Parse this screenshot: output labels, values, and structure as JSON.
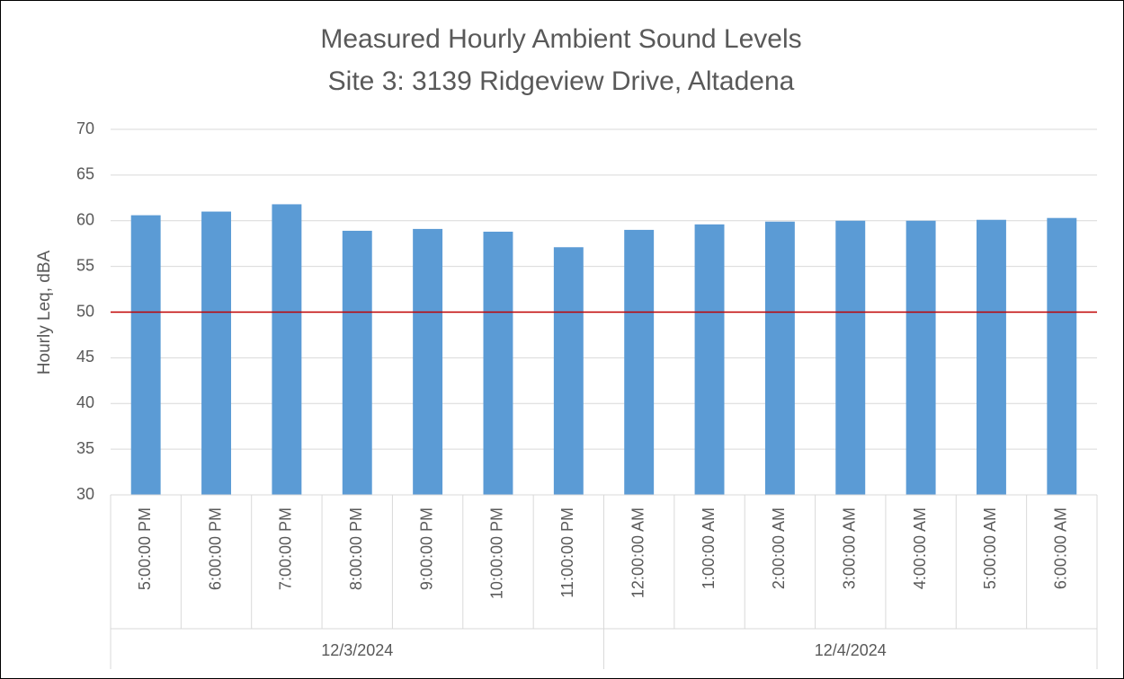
{
  "chart_data": {
    "type": "bar",
    "title": [
      "Measured Hourly Ambient Sound Levels",
      "Site 3: 3139 Ridgeview Drive, Altadena"
    ],
    "y_label": "Hourly Leq, dBA",
    "groups": [
      {
        "label": "12/3/2024",
        "categories": [
          "5:00:00 PM",
          "6:00:00 PM",
          "7:00:00 PM",
          "8:00:00 PM",
          "9:00:00 PM",
          "10:00:00 PM",
          "11:00:00 PM"
        ],
        "values": [
          60.6,
          61.0,
          61.8,
          58.9,
          59.1,
          58.8,
          57.1
        ]
      },
      {
        "label": "12/4/2024",
        "categories": [
          "12:00:00 AM",
          "1:00:00 AM",
          "2:00:00 AM",
          "3:00:00 AM",
          "4:00:00 AM",
          "5:00:00 AM",
          "6:00:00 AM"
        ],
        "values": [
          59.0,
          59.6,
          59.9,
          60.0,
          60.0,
          60.1,
          60.3
        ]
      }
    ],
    "color": "#5b9bd5",
    "reference_line": {
      "value": 50,
      "color": "#c00000"
    },
    "ylim": [
      30,
      70
    ],
    "yticks": [
      30,
      35,
      40,
      45,
      50,
      55,
      60,
      65,
      70
    ],
    "grid": true
  }
}
